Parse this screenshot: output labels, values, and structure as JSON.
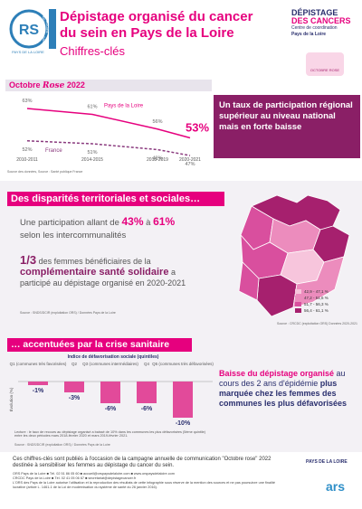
{
  "header": {
    "logo_left": [
      "OBSERVATOIRE",
      "RÉGIONAL DE LA SANTÉ",
      "PAYS DE LA LOIRE"
    ],
    "title": "Dépistage organisé du cancer du sein en Pays de la Loire",
    "subtitle": "Chiffres-clés",
    "logo_right": [
      "DÉPISTAGE",
      "DES CANCERS",
      "Centre de coordination",
      "Pays de la Loire"
    ],
    "badge": "OCTOBRE ROSE"
  },
  "section1": {
    "banner": [
      "Octobre",
      "Rose",
      "2022"
    ],
    "chart": {
      "categories": [
        "2010-2011",
        "2014-2015",
        "2018-2019",
        "2020-2021"
      ],
      "series": [
        {
          "name": "Pays de la Loire",
          "color": "#e6007e",
          "values": [
            63,
            61,
            56,
            53
          ],
          "value_labels": [
            "63%",
            "61%",
            "56%",
            "53%"
          ]
        },
        {
          "name": "France",
          "color": "#8a3a7e",
          "values": [
            52,
            51,
            49,
            47
          ],
          "value_labels": [
            "52%",
            "51%",
            "49%",
            "47%"
          ]
        }
      ]
    },
    "callout": "Un taux de participation régional supérieur au niveau national mais en forte baisse",
    "source": "Source des données, Source : Santé publique France"
  },
  "section2": {
    "heading": "Des disparités territoriales et sociales…",
    "text1": [
      "Une participation allant de ",
      "43%",
      " à ",
      "61%",
      "selon les intercommunalités"
    ],
    "text2": [
      "1/3",
      " des femmes bénéficiaires de la ",
      "complémentaire santé solidaire",
      " a participé au dépistage organisé en 2020-2021"
    ],
    "source": "Source : SNDS/DCIR (exploitation ORS) / Données Pays de la Loire",
    "legend": [
      {
        "label": "42,9 - 47,1 %",
        "color": "#f7c5dc"
      },
      {
        "label": "47,2 - 51,6 %",
        "color": "#ec8cbd"
      },
      {
        "label": "51,7 - 56,3 %",
        "color": "#d94f9e"
      },
      {
        "label": "56,4 - 61,1 %",
        "color": "#a6206e"
      }
    ],
    "map_source": "Source : CRCDC (exploitation ORS) Données 2020-2021"
  },
  "section3": {
    "heading": "… accentuées par la crise sanitaire",
    "chart": {
      "title": "Indice de défavorisation sociale (quintiles)",
      "y_label": "Évolution (%)",
      "color": "#e24a9a",
      "categories": [
        "Q1 (communes très favorisées)",
        "Q2",
        "Q3 (communes intermédiaires)",
        "Q4",
        "Q5 (communes très défavorisées)"
      ],
      "values": [
        -1,
        -3,
        -6,
        -6,
        -10
      ],
      "value_labels": [
        "-1%",
        "-3%",
        "-6%",
        "-6%",
        "-10%"
      ]
    },
    "callout": [
      "Baisse du dépistage organisé",
      " au cours des 2 ans d'épidémie ",
      "plus marquée chez les femmes des communes les plus défavorisées"
    ],
    "note": "Lecture : le taux de recours au dépistage organisé a baissé de 10% dans les communes les plus défavorisées (5ème quintile) entre les deux périodes mars 2018-février 2020 et mars 2019-février 2021.",
    "source": "Source : SNDS/DCIR (exploitation ORS) / Données Pays de la Loire"
  },
  "footer": {
    "intro": "Ces chiffres-clés sont publiés à l'occasion de la campagne annuelle de communication \"Octobre rose\" 2022 destinée à sensibiliser les femmes au dépistage du cancer du sein.",
    "lines": [
      "ORS Pays de la Loire ■ Tél. 02 51 86 05 60 ■ accueil@orspaysdelaloire.com ■ www.orspaysdelaloire.com",
      "CRCDC Pays de la Loire ■ Tél. 02 41 05 06 67 ■ secretariat@depistagecancer.fr",
      "L'ORS des Pays de la Loire autorise l'utilisation et la reproduction des résultats de cette infographie sous réserve de la mention des sources et ne pas poursuivre une finalité lucrative (article L. 1461-1 de la Loi de modernisation du système de santé du 26 janvier 2016)."
    ],
    "logos": [
      "PAYS DE LA LOIRE",
      "ars"
    ]
  }
}
